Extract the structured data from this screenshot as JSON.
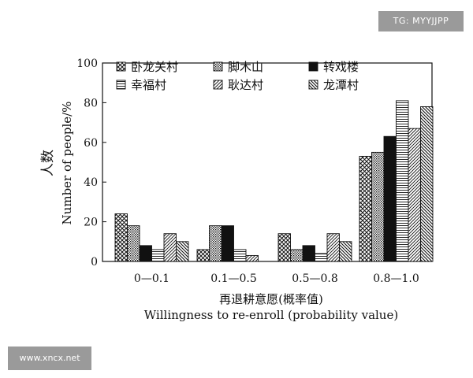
{
  "watermarks": {
    "top_right": "TG: MYYJJPP",
    "bottom_left": "www.xncx.net"
  },
  "chart_data": {
    "type": "bar",
    "title": "",
    "ylabel_cn": "人数",
    "ylabel_en": "Number of people/%",
    "xlabel_cn": "再退耕意愿(概率值)",
    "xlabel_en": "Willingness to re-enroll (probability value)",
    "categories": [
      "0—0.1",
      "0.1—0.5",
      "0.5—0.8",
      "0.8—1.0"
    ],
    "ylim": [
      0,
      100
    ],
    "yticks": [
      0,
      20,
      40,
      60,
      80,
      100
    ],
    "grid": false,
    "legend_position": "top",
    "series": [
      {
        "name": "卧龙关村",
        "pattern": "crosshatch",
        "values": [
          24,
          6,
          14,
          53
        ]
      },
      {
        "name": "脚木山",
        "pattern": "dots",
        "values": [
          18,
          18,
          6,
          55
        ]
      },
      {
        "name": "转戏楼",
        "pattern": "solid",
        "values": [
          8,
          18,
          8,
          63
        ]
      },
      {
        "name": "幸福村",
        "pattern": "hlines",
        "values": [
          6,
          6,
          4,
          81
        ]
      },
      {
        "name": "耿达村",
        "pattern": "diag",
        "values": [
          14,
          3,
          14,
          67
        ]
      },
      {
        "name": "龙潭村",
        "pattern": "backdiag",
        "values": [
          10,
          0,
          10,
          78
        ]
      }
    ],
    "colors": {
      "stroke": "#111111",
      "fill": "#111111"
    }
  }
}
